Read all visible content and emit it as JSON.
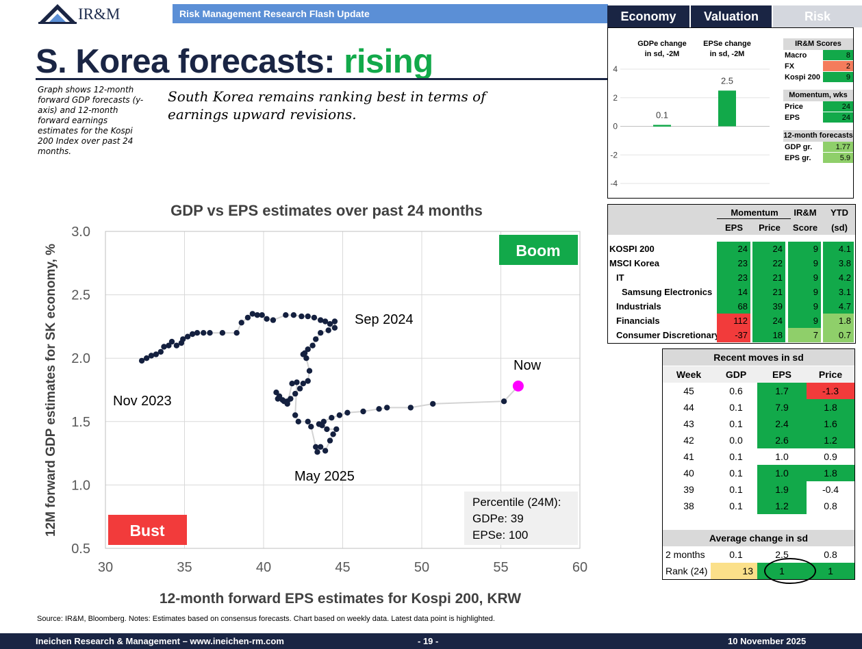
{
  "header": {
    "logo_text": "IR&M",
    "flash_label": "Risk Management Research Flash Update",
    "tabs": [
      "Economy",
      "Valuation",
      "Risk"
    ]
  },
  "title": {
    "main": "S. Korea forecasts: ",
    "accent": "rising"
  },
  "note": "Graph shows 12-month forward GDP forecasts (y-axis) and 12-month forward earnings estimates for the Kospi 200 Index over past 24 months.",
  "subtitle": "South Korea remains ranking best in terms of earnings upward revisions.",
  "colors": {
    "navy": "#1a2544",
    "green": "#12a94a",
    "red": "#f23b3b",
    "magenta": "#ff00ff",
    "point": "#14203f",
    "line": "#d3d3d3"
  },
  "chart_data": [
    {
      "type": "scatter",
      "title": "GDP vs EPS estimates over past 24 months",
      "xlabel": "12-month forward EPS estimates for Kospi 200, KRW",
      "ylabel": "12M forward GDP estimates for SK economy, %",
      "xlim": [
        30,
        60
      ],
      "ylim": [
        0.5,
        3.0
      ],
      "xticks": [
        "30",
        "35",
        "40",
        "45",
        "50",
        "55",
        "60"
      ],
      "yticks": [
        "3.0",
        "2.5",
        "2.0",
        "1.5",
        "1.0",
        "0.5"
      ],
      "grid": true,
      "annotations": [
        "Nov 2023",
        "Sep 2024",
        "May 2025",
        "Now"
      ],
      "boom_label": "Boom",
      "bust_label": "Bust",
      "percentile_box": [
        "Percentile (24M):",
        "GDPe: 39",
        "EPSe:  100"
      ],
      "x": [
        32.3,
        32.6,
        32.9,
        33.2,
        33.5,
        33.7,
        34.0,
        34.2,
        34.5,
        34.8,
        34.9,
        35.2,
        35.5,
        35.8,
        36.2,
        36.6,
        37.4,
        38.3,
        38.6,
        39.0,
        39.3,
        39.6,
        39.9,
        40.2,
        40.6,
        41.4,
        41.9,
        42.4,
        42.8,
        43.2,
        43.6,
        43.9,
        44.2,
        44.5,
        44.5,
        44.1,
        43.6,
        43.3,
        43.1,
        42.8,
        42.6,
        42.5,
        42.7,
        42.9,
        42.8,
        42.5,
        42.3,
        42.0,
        41.7,
        41.5,
        41.2,
        40.9,
        40.8,
        41.0,
        41.3,
        41.5,
        41.8,
        42.1,
        42.0,
        42.2,
        42.8,
        43.0,
        43.3,
        43.4,
        43.6,
        43.9,
        44.2,
        44.4,
        44.6,
        44.0,
        43.7,
        43.5,
        43.8,
        44.3,
        44.8,
        45.3,
        46.3,
        47.3,
        47.8,
        49.3,
        50.7,
        55.2,
        56.1
      ],
      "y": [
        1.98,
        2.0,
        2.02,
        2.03,
        2.05,
        2.09,
        2.1,
        2.13,
        2.1,
        2.12,
        2.15,
        2.17,
        2.19,
        2.2,
        2.2,
        2.2,
        2.2,
        2.2,
        2.28,
        2.32,
        2.35,
        2.34,
        2.34,
        2.31,
        2.3,
        2.34,
        2.34,
        2.33,
        2.33,
        2.32,
        2.3,
        2.29,
        2.27,
        2.24,
        2.29,
        2.22,
        2.2,
        2.15,
        2.1,
        2.07,
        2.04,
        2.03,
        2.0,
        1.9,
        1.82,
        1.8,
        1.76,
        1.72,
        1.68,
        1.66,
        1.67,
        1.68,
        1.73,
        1.7,
        1.66,
        1.64,
        1.8,
        1.81,
        1.55,
        1.5,
        1.5,
        1.46,
        1.3,
        1.26,
        1.3,
        1.27,
        1.35,
        1.4,
        1.44,
        1.44,
        1.47,
        1.48,
        1.5,
        1.53,
        1.55,
        1.57,
        1.58,
        1.6,
        1.61,
        1.61,
        1.64,
        1.66,
        1.78
      ],
      "highlight": "latest"
    },
    {
      "type": "bar",
      "categories": [
        "GDPe change in sd, -2M",
        "EPSe change in sd, -2M"
      ],
      "values": [
        0.1,
        2.5
      ],
      "value_labels": [
        "0.1",
        "2.5"
      ],
      "ylim": [
        -4,
        4
      ],
      "yticks": [
        "4",
        "2",
        "0",
        "-2",
        "-4"
      ]
    }
  ],
  "scores": {
    "irm_header": "IR&M Scores",
    "irm_rows": [
      {
        "label": "Macro",
        "value": "8",
        "color": "green"
      },
      {
        "label": "FX",
        "value": "2",
        "color": "orange"
      },
      {
        "label": "Kospi 200",
        "value": "9",
        "color": "green"
      }
    ],
    "momentum_header": "Momentum, wks",
    "momentum_rows": [
      {
        "label": "Price",
        "value": "24",
        "color": "green"
      },
      {
        "label": "EPS",
        "value": "24",
        "color": "green"
      }
    ],
    "forecast_header": "12-month forecasts",
    "forecast_rows": [
      {
        "label": "GDP gr.",
        "value": "1.77",
        "color": "lightgreen"
      },
      {
        "label": "EPS gr.",
        "value": "5.9",
        "color": "lightgreen"
      }
    ]
  },
  "sector_table": {
    "headers": {
      "momentum": "Momentum",
      "eps": "EPS",
      "price": "Price",
      "irm": "IR&M",
      "score": "Score",
      "ytd": "YTD",
      "sd": "(sd)"
    },
    "rows": [
      {
        "name": "KOSPI 200",
        "indent": 0,
        "eps": "24",
        "price": "24",
        "score": "9",
        "ytd": "4.1",
        "colors": [
          "g",
          "g",
          "g",
          "g"
        ]
      },
      {
        "name": "MSCI Korea",
        "indent": 0,
        "eps": "23",
        "price": "22",
        "score": "9",
        "ytd": "3.8",
        "colors": [
          "g",
          "g",
          "g",
          "g"
        ]
      },
      {
        "name": "IT",
        "indent": 1,
        "eps": "23",
        "price": "21",
        "score": "9",
        "ytd": "4.2",
        "colors": [
          "g",
          "g",
          "g",
          "g"
        ]
      },
      {
        "name": "Samsung Electronics",
        "indent": 2,
        "eps": "14",
        "price": "21",
        "score": "9",
        "ytd": "3.1",
        "colors": [
          "g",
          "g",
          "g",
          "g"
        ]
      },
      {
        "name": "Industrials",
        "indent": 1,
        "eps": "68",
        "price": "39",
        "score": "9",
        "ytd": "4.7",
        "colors": [
          "g",
          "g",
          "g",
          "g"
        ]
      },
      {
        "name": "Financials",
        "indent": 1,
        "eps": "112",
        "price": "24",
        "score": "9",
        "ytd": "1.8",
        "colors": [
          "r",
          "g",
          "g",
          "lg"
        ]
      },
      {
        "name": "Consumer Discretionary",
        "indent": 1,
        "eps": "-37",
        "price": "18",
        "score": "7",
        "ytd": "0.7",
        "colors": [
          "r",
          "g",
          "lg",
          "lg"
        ]
      }
    ]
  },
  "recent_moves": {
    "title": "Recent moves in sd",
    "columns": [
      "Week",
      "GDP",
      "EPS",
      "Price"
    ],
    "rows": [
      {
        "week": "45",
        "gdp": "0.6",
        "eps": "1.7",
        "price": "-1.3",
        "colors": [
          "",
          "g",
          "r"
        ]
      },
      {
        "week": "44",
        "gdp": "0.1",
        "eps": "7.9",
        "price": "1.8",
        "colors": [
          "",
          "g",
          "g"
        ]
      },
      {
        "week": "43",
        "gdp": "0.1",
        "eps": "2.4",
        "price": "1.6",
        "colors": [
          "",
          "g",
          "g"
        ]
      },
      {
        "week": "42",
        "gdp": "0.0",
        "eps": "2.6",
        "price": "1.2",
        "colors": [
          "",
          "g",
          "g"
        ]
      },
      {
        "week": "41",
        "gdp": "0.1",
        "eps": "1.0",
        "price": "0.9",
        "colors": [
          "",
          "",
          ""
        ]
      },
      {
        "week": "40",
        "gdp": "0.1",
        "eps": "1.0",
        "price": "1.8",
        "colors": [
          "",
          "g",
          "g"
        ]
      },
      {
        "week": "39",
        "gdp": "0.1",
        "eps": "1.9",
        "price": "-0.4",
        "colors": [
          "",
          "g",
          ""
        ]
      },
      {
        "week": "38",
        "gdp": "0.1",
        "eps": "1.2",
        "price": "0.8",
        "colors": [
          "",
          "g",
          ""
        ]
      }
    ],
    "avg_title": "Average change in sd",
    "avg_rows": [
      {
        "label": "2 months",
        "gdp": "0.1",
        "eps": "2.5",
        "price": "0.8",
        "colors": [
          "",
          "",
          ""
        ]
      },
      {
        "label": "Rank (24)",
        "gdp": "13",
        "eps": "1",
        "price": "1",
        "colors": [
          "y",
          "g",
          "g"
        ]
      }
    ]
  },
  "source": "Source: IR&M, Bloomberg. Notes: Estimates based on consensus forecasts. Chart based on weekly data. Latest data point is highlighted.",
  "footer": {
    "company": "Ineichen Research & Management – www.ineichen-rm.com",
    "page": "- 19 -",
    "date": "10 November 2025"
  }
}
